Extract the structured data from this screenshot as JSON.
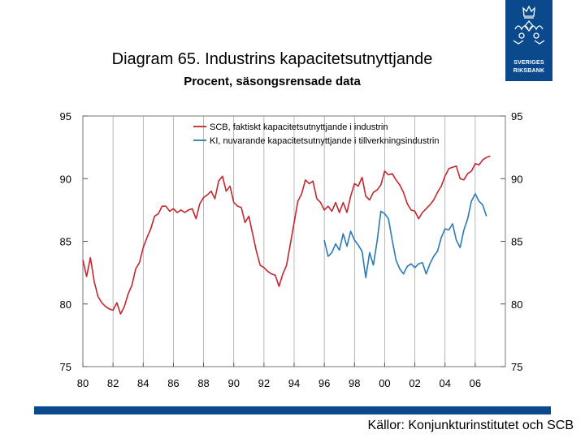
{
  "header": {
    "title": "Diagram 65. Industrins kapacitetsutnyttjande",
    "subtitle": "Procent, säsongsrensade data",
    "logo_line1": "SVERIGES",
    "logo_line2": "RIKSBANK"
  },
  "footer": {
    "source": "Källor: Konjunkturinstitutet och SCB"
  },
  "colors": {
    "scb": "#c1272d",
    "ki": "#2a7ab5",
    "brand": "#0a4a8c",
    "grid": "#9a9a9a"
  },
  "chart_data": {
    "type": "line",
    "title": "Diagram 65. Industrins kapacitetsutnyttjande",
    "subtitle": "Procent, säsongsrensade data",
    "xlabel": "",
    "ylabel": "",
    "xlim": [
      1980,
      2008
    ],
    "ylim": [
      75,
      95
    ],
    "yticks": [
      95,
      90,
      85,
      80,
      75
    ],
    "xtick_values": [
      1980,
      1982,
      1984,
      1986,
      1988,
      1990,
      1992,
      1994,
      1996,
      1998,
      2000,
      2002,
      2004,
      2006
    ],
    "xtick_labels": [
      "80",
      "82",
      "84",
      "86",
      "88",
      "90",
      "92",
      "94",
      "96",
      "98",
      "00",
      "02",
      "04",
      "06"
    ],
    "grid": "vertical",
    "legend_position": "top-right",
    "series": [
      {
        "name": "SCB, faktiskt kapacitetsutnyttjande i industrin",
        "color": "#c1272d",
        "points": [
          [
            1980.0,
            83.5
          ],
          [
            1980.25,
            82.2
          ],
          [
            1980.5,
            83.7
          ],
          [
            1980.75,
            81.8
          ],
          [
            1981.0,
            80.6
          ],
          [
            1981.25,
            80.1
          ],
          [
            1981.5,
            79.8
          ],
          [
            1981.75,
            79.6
          ],
          [
            1982.0,
            79.5
          ],
          [
            1982.25,
            80.1
          ],
          [
            1982.5,
            79.2
          ],
          [
            1982.75,
            79.8
          ],
          [
            1983.0,
            80.8
          ],
          [
            1983.25,
            81.5
          ],
          [
            1983.5,
            82.8
          ],
          [
            1983.75,
            83.3
          ],
          [
            1984.0,
            84.5
          ],
          [
            1984.25,
            85.3
          ],
          [
            1984.5,
            86.0
          ],
          [
            1984.75,
            87.0
          ],
          [
            1985.0,
            87.2
          ],
          [
            1985.25,
            87.8
          ],
          [
            1985.5,
            87.8
          ],
          [
            1985.75,
            87.4
          ],
          [
            1986.0,
            87.6
          ],
          [
            1986.25,
            87.3
          ],
          [
            1986.5,
            87.5
          ],
          [
            1986.75,
            87.3
          ],
          [
            1987.0,
            87.5
          ],
          [
            1987.25,
            87.6
          ],
          [
            1987.5,
            86.8
          ],
          [
            1987.75,
            88.0
          ],
          [
            1988.0,
            88.5
          ],
          [
            1988.25,
            88.7
          ],
          [
            1988.5,
            89.0
          ],
          [
            1988.75,
            88.4
          ],
          [
            1989.0,
            89.8
          ],
          [
            1989.25,
            90.2
          ],
          [
            1989.5,
            89.0
          ],
          [
            1989.75,
            89.4
          ],
          [
            1990.0,
            88.1
          ],
          [
            1990.25,
            87.8
          ],
          [
            1990.5,
            87.7
          ],
          [
            1990.75,
            86.5
          ],
          [
            1991.0,
            87.0
          ],
          [
            1991.25,
            85.6
          ],
          [
            1991.5,
            84.2
          ],
          [
            1991.75,
            83.1
          ],
          [
            1992.0,
            82.9
          ],
          [
            1992.25,
            82.6
          ],
          [
            1992.5,
            82.4
          ],
          [
            1992.75,
            82.3
          ],
          [
            1993.0,
            81.4
          ],
          [
            1993.25,
            82.4
          ],
          [
            1993.5,
            83.1
          ],
          [
            1993.75,
            84.8
          ],
          [
            1994.0,
            86.5
          ],
          [
            1994.25,
            88.2
          ],
          [
            1994.5,
            88.8
          ],
          [
            1994.75,
            89.9
          ],
          [
            1995.0,
            89.6
          ],
          [
            1995.25,
            89.8
          ],
          [
            1995.5,
            88.4
          ],
          [
            1995.75,
            88.1
          ],
          [
            1996.0,
            87.5
          ],
          [
            1996.25,
            87.8
          ],
          [
            1996.5,
            87.4
          ],
          [
            1996.75,
            88.1
          ],
          [
            1997.0,
            87.3
          ],
          [
            1997.25,
            88.1
          ],
          [
            1997.5,
            87.3
          ],
          [
            1997.75,
            88.6
          ],
          [
            1998.0,
            89.6
          ],
          [
            1998.25,
            89.4
          ],
          [
            1998.5,
            90.1
          ],
          [
            1998.75,
            88.6
          ],
          [
            1999.0,
            88.3
          ],
          [
            1999.25,
            88.9
          ],
          [
            1999.5,
            89.1
          ],
          [
            1999.75,
            89.5
          ],
          [
            2000.0,
            90.6
          ],
          [
            2000.25,
            90.3
          ],
          [
            2000.5,
            90.4
          ],
          [
            2000.75,
            89.9
          ],
          [
            2001.0,
            89.5
          ],
          [
            2001.25,
            88.9
          ],
          [
            2001.5,
            88.0
          ],
          [
            2001.75,
            87.5
          ],
          [
            2002.0,
            87.4
          ],
          [
            2002.25,
            86.8
          ],
          [
            2002.5,
            87.3
          ],
          [
            2002.75,
            87.6
          ],
          [
            2003.0,
            87.9
          ],
          [
            2003.25,
            88.3
          ],
          [
            2003.5,
            88.9
          ],
          [
            2003.75,
            89.4
          ],
          [
            2004.0,
            90.2
          ],
          [
            2004.25,
            90.8
          ],
          [
            2004.5,
            90.9
          ],
          [
            2004.75,
            91.0
          ],
          [
            2005.0,
            90.0
          ],
          [
            2005.25,
            89.9
          ],
          [
            2005.5,
            90.4
          ],
          [
            2005.75,
            90.6
          ],
          [
            2006.0,
            91.2
          ],
          [
            2006.25,
            91.1
          ],
          [
            2006.5,
            91.5
          ],
          [
            2006.75,
            91.7
          ],
          [
            2007.0,
            91.8
          ]
        ]
      },
      {
        "name": "KI, nuvarande kapacitetsutnyttjande i tillverkningsindustrin",
        "color": "#2a7ab5",
        "points": [
          [
            1996.0,
            85.1
          ],
          [
            1996.25,
            83.8
          ],
          [
            1996.5,
            84.1
          ],
          [
            1996.75,
            84.8
          ],
          [
            1997.0,
            84.3
          ],
          [
            1997.25,
            85.6
          ],
          [
            1997.5,
            84.6
          ],
          [
            1997.75,
            85.8
          ],
          [
            1998.0,
            85.1
          ],
          [
            1998.25,
            84.7
          ],
          [
            1998.5,
            84.2
          ],
          [
            1998.75,
            82.1
          ],
          [
            1999.0,
            84.1
          ],
          [
            1999.25,
            83.1
          ],
          [
            1999.5,
            85.0
          ],
          [
            1999.75,
            87.4
          ],
          [
            2000.0,
            87.2
          ],
          [
            2000.25,
            86.8
          ],
          [
            2000.5,
            85.1
          ],
          [
            2000.75,
            83.5
          ],
          [
            2001.0,
            82.8
          ],
          [
            2001.25,
            82.4
          ],
          [
            2001.5,
            83.0
          ],
          [
            2001.75,
            83.2
          ],
          [
            2002.0,
            82.9
          ],
          [
            2002.25,
            83.2
          ],
          [
            2002.5,
            83.3
          ],
          [
            2002.75,
            82.4
          ],
          [
            2003.0,
            83.2
          ],
          [
            2003.25,
            83.8
          ],
          [
            2003.5,
            84.2
          ],
          [
            2003.75,
            85.3
          ],
          [
            2004.0,
            86.0
          ],
          [
            2004.25,
            85.9
          ],
          [
            2004.5,
            86.4
          ],
          [
            2004.75,
            85.1
          ],
          [
            2005.0,
            84.5
          ],
          [
            2005.25,
            85.9
          ],
          [
            2005.5,
            86.8
          ],
          [
            2005.75,
            88.2
          ],
          [
            2006.0,
            88.8
          ],
          [
            2006.25,
            88.2
          ],
          [
            2006.5,
            87.9
          ],
          [
            2006.75,
            87.0
          ]
        ]
      }
    ]
  }
}
